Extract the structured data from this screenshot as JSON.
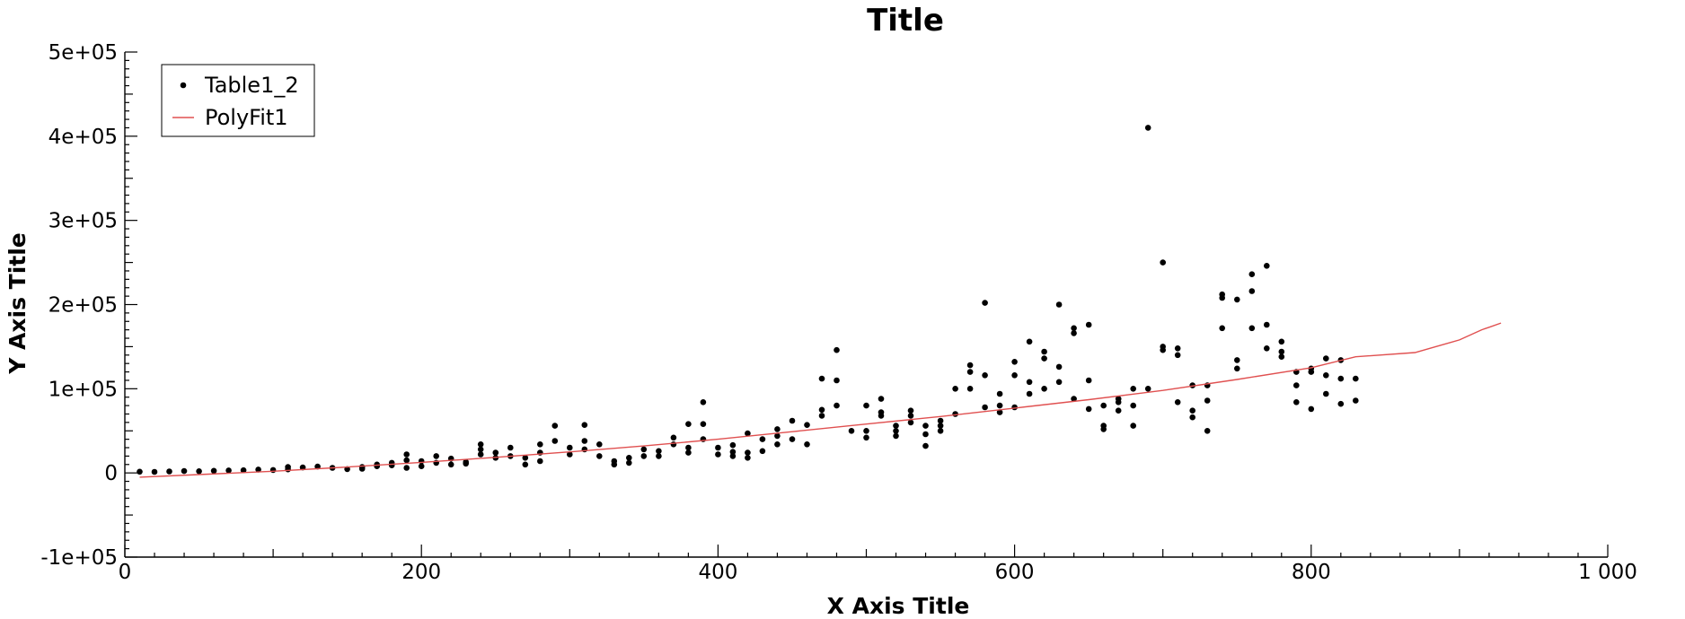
{
  "chart_data": {
    "type": "scatter",
    "title": "Title",
    "xlabel": "X Axis Title",
    "ylabel": "Y Axis Title",
    "xlim": [
      0,
      1000
    ],
    "ylim": [
      -100000,
      500000
    ],
    "x_ticks": [
      0,
      200,
      400,
      600,
      800,
      1000
    ],
    "x_tick_labels": [
      "0",
      "200",
      "400",
      "600",
      "800",
      "1 000"
    ],
    "y_ticks": [
      -100000,
      0,
      100000,
      200000,
      300000,
      400000,
      500000
    ],
    "y_tick_labels": [
      "-1e+05",
      "0",
      "1e+05",
      "2e+05",
      "3e+05",
      "4e+05",
      "5e+05"
    ],
    "grid": false,
    "legend_position": "top-left",
    "series": [
      {
        "name": "Table1_2",
        "kind": "scatter",
        "color": "#000000",
        "points": [
          [
            10,
            1500
          ],
          [
            20,
            1200
          ],
          [
            30,
            1800
          ],
          [
            40,
            2200
          ],
          [
            50,
            2000
          ],
          [
            60,
            2500
          ],
          [
            70,
            3000
          ],
          [
            80,
            3200
          ],
          [
            90,
            4000
          ],
          [
            100,
            3500
          ],
          [
            110,
            4200
          ],
          [
            110,
            7000
          ],
          [
            120,
            6500
          ],
          [
            130,
            7500
          ],
          [
            140,
            6000
          ],
          [
            150,
            4500
          ],
          [
            160,
            5000
          ],
          [
            160,
            7000
          ],
          [
            170,
            8000
          ],
          [
            170,
            10000
          ],
          [
            180,
            12000
          ],
          [
            180,
            9000
          ],
          [
            190,
            6000
          ],
          [
            190,
            15000
          ],
          [
            190,
            22000
          ],
          [
            200,
            8000
          ],
          [
            200,
            14000
          ],
          [
            210,
            12000
          ],
          [
            210,
            20000
          ],
          [
            220,
            10000
          ],
          [
            220,
            17000
          ],
          [
            230,
            11000
          ],
          [
            230,
            13000
          ],
          [
            240,
            22000
          ],
          [
            240,
            28000
          ],
          [
            240,
            34000
          ],
          [
            250,
            18000
          ],
          [
            250,
            24000
          ],
          [
            260,
            20000
          ],
          [
            260,
            30000
          ],
          [
            270,
            10000
          ],
          [
            270,
            18000
          ],
          [
            280,
            14000
          ],
          [
            280,
            24000
          ],
          [
            280,
            34000
          ],
          [
            290,
            38000
          ],
          [
            290,
            56000
          ],
          [
            300,
            22000
          ],
          [
            300,
            30000
          ],
          [
            310,
            28000
          ],
          [
            310,
            38000
          ],
          [
            310,
            57000
          ],
          [
            320,
            20000
          ],
          [
            320,
            34000
          ],
          [
            330,
            10000
          ],
          [
            330,
            14000
          ],
          [
            340,
            12000
          ],
          [
            340,
            18000
          ],
          [
            350,
            20000
          ],
          [
            350,
            28000
          ],
          [
            360,
            20000
          ],
          [
            360,
            26000
          ],
          [
            370,
            34000
          ],
          [
            370,
            42000
          ],
          [
            380,
            24000
          ],
          [
            380,
            30000
          ],
          [
            380,
            58000
          ],
          [
            390,
            40000
          ],
          [
            390,
            58000
          ],
          [
            390,
            84000
          ],
          [
            400,
            22000
          ],
          [
            400,
            30000
          ],
          [
            410,
            20000
          ],
          [
            410,
            25000
          ],
          [
            410,
            33000
          ],
          [
            420,
            18000
          ],
          [
            420,
            24000
          ],
          [
            420,
            47000
          ],
          [
            430,
            26000
          ],
          [
            430,
            40000
          ],
          [
            440,
            34000
          ],
          [
            440,
            44000
          ],
          [
            440,
            52000
          ],
          [
            450,
            40000
          ],
          [
            450,
            62000
          ],
          [
            460,
            34000
          ],
          [
            460,
            57000
          ],
          [
            470,
            68000
          ],
          [
            470,
            75000
          ],
          [
            470,
            112000
          ],
          [
            480,
            80000
          ],
          [
            480,
            110000
          ],
          [
            480,
            146000
          ],
          [
            490,
            50000
          ],
          [
            500,
            42000
          ],
          [
            500,
            50000
          ],
          [
            500,
            80000
          ],
          [
            510,
            68000
          ],
          [
            510,
            72000
          ],
          [
            510,
            88000
          ],
          [
            520,
            44000
          ],
          [
            520,
            50000
          ],
          [
            520,
            56000
          ],
          [
            530,
            60000
          ],
          [
            530,
            68000
          ],
          [
            530,
            74000
          ],
          [
            540,
            32000
          ],
          [
            540,
            46000
          ],
          [
            540,
            56000
          ],
          [
            550,
            50000
          ],
          [
            550,
            56000
          ],
          [
            550,
            62000
          ],
          [
            560,
            70000
          ],
          [
            560,
            100000
          ],
          [
            570,
            100000
          ],
          [
            570,
            120000
          ],
          [
            570,
            128000
          ],
          [
            580,
            78000
          ],
          [
            580,
            116000
          ],
          [
            580,
            202000
          ],
          [
            590,
            72000
          ],
          [
            590,
            80000
          ],
          [
            590,
            94000
          ],
          [
            600,
            78000
          ],
          [
            600,
            116000
          ],
          [
            600,
            132000
          ],
          [
            610,
            94000
          ],
          [
            610,
            108000
          ],
          [
            610,
            156000
          ],
          [
            620,
            100000
          ],
          [
            620,
            136000
          ],
          [
            620,
            144000
          ],
          [
            630,
            108000
          ],
          [
            630,
            126000
          ],
          [
            630,
            200000
          ],
          [
            640,
            88000
          ],
          [
            640,
            166000
          ],
          [
            640,
            172000
          ],
          [
            650,
            76000
          ],
          [
            650,
            110000
          ],
          [
            650,
            176000
          ],
          [
            660,
            52000
          ],
          [
            660,
            56000
          ],
          [
            660,
            80000
          ],
          [
            670,
            74000
          ],
          [
            670,
            84000
          ],
          [
            670,
            88000
          ],
          [
            680,
            56000
          ],
          [
            680,
            80000
          ],
          [
            680,
            100000
          ],
          [
            690,
            100000
          ],
          [
            690,
            410000
          ],
          [
            700,
            146000
          ],
          [
            700,
            150000
          ],
          [
            700,
            250000
          ],
          [
            710,
            84000
          ],
          [
            710,
            140000
          ],
          [
            710,
            148000
          ],
          [
            720,
            66000
          ],
          [
            720,
            74000
          ],
          [
            720,
            104000
          ],
          [
            730,
            50000
          ],
          [
            730,
            86000
          ],
          [
            730,
            104000
          ],
          [
            740,
            172000
          ],
          [
            740,
            208000
          ],
          [
            740,
            212000
          ],
          [
            750,
            124000
          ],
          [
            750,
            134000
          ],
          [
            750,
            206000
          ],
          [
            760,
            172000
          ],
          [
            760,
            216000
          ],
          [
            760,
            236000
          ],
          [
            770,
            148000
          ],
          [
            770,
            176000
          ],
          [
            770,
            246000
          ],
          [
            780,
            138000
          ],
          [
            780,
            144000
          ],
          [
            780,
            156000
          ],
          [
            790,
            84000
          ],
          [
            790,
            104000
          ],
          [
            790,
            120000
          ],
          [
            800,
            76000
          ],
          [
            800,
            120000
          ],
          [
            800,
            124000
          ],
          [
            810,
            94000
          ],
          [
            810,
            116000
          ],
          [
            810,
            136000
          ],
          [
            820,
            82000
          ],
          [
            820,
            112000
          ],
          [
            820,
            134000
          ],
          [
            830,
            86000
          ],
          [
            830,
            112000
          ]
        ]
      },
      {
        "name": "PolyFit1",
        "kind": "line",
        "color": "#e05050",
        "points": [
          [
            10,
            -5000
          ],
          [
            50,
            -2000
          ],
          [
            100,
            2000
          ],
          [
            150,
            7000
          ],
          [
            200,
            12500
          ],
          [
            250,
            18500
          ],
          [
            300,
            25000
          ],
          [
            350,
            32000
          ],
          [
            400,
            40000
          ],
          [
            450,
            49000
          ],
          [
            500,
            58000
          ],
          [
            550,
            67000
          ],
          [
            600,
            77000
          ],
          [
            650,
            87000
          ],
          [
            700,
            98000
          ],
          [
            750,
            111000
          ],
          [
            800,
            125000
          ],
          [
            830,
            138000
          ],
          [
            870,
            143000
          ],
          [
            880,
            148000
          ],
          [
            900,
            158000
          ],
          [
            915,
            170000
          ],
          [
            920,
            173000
          ],
          [
            928,
            178000
          ]
        ]
      }
    ]
  }
}
